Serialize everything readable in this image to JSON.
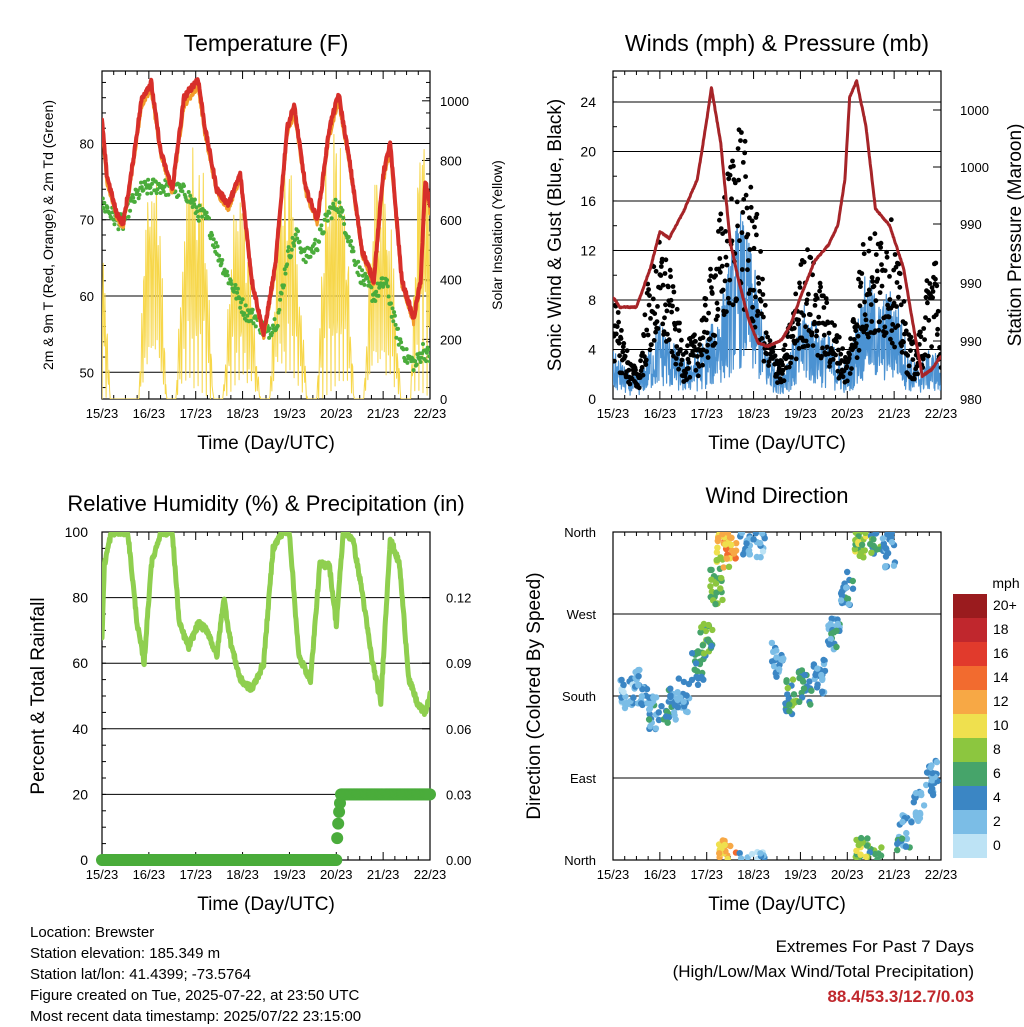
{
  "figure": {
    "x_tick_labels": [
      "15/23",
      "16/23",
      "17/23",
      "18/23",
      "19/23",
      "20/23",
      "21/23",
      "22/23"
    ],
    "x_axis_label": "Time (Day/UTC)"
  },
  "chart_data": [
    {
      "id": "temperature",
      "type": "line",
      "title": "Temperature (F)",
      "xlabel": "Time (Day/UTC)",
      "ylabel": "2m & 9m T (Red, Orange) & 2m Td (Green)",
      "ylabel_right": "Solar Insolation (Yellow)",
      "ylim": [
        46.5,
        89.5
      ],
      "yticks": [
        50,
        60,
        70,
        80
      ],
      "ylim_right": [
        0,
        1100
      ],
      "yticks_right": [
        0,
        200,
        400,
        600,
        800,
        1000
      ],
      "xlim": [
        0,
        7
      ],
      "grid": true,
      "series": [
        {
          "name": "2m T",
          "color": "#d72f2a",
          "x": [
            0,
            0.1,
            0.3,
            0.45,
            0.6,
            0.85,
            1.05,
            1.25,
            1.5,
            1.75,
            2.05,
            2.2,
            2.45,
            2.7,
            2.95,
            3.2,
            3.45,
            3.7,
            3.95,
            4.1,
            4.35,
            4.6,
            4.85,
            5.05,
            5.3,
            5.55,
            5.8,
            6.0,
            6.15,
            6.4,
            6.65,
            6.8,
            6.9,
            7.0
          ],
          "values": [
            83,
            76,
            71,
            69.5,
            75,
            86,
            88,
            79,
            74,
            86,
            88.5,
            82,
            74,
            72,
            76,
            62,
            55,
            64,
            82,
            85,
            74,
            70,
            82,
            86.5,
            77,
            66,
            62,
            76,
            80,
            62,
            57,
            62,
            75,
            72
          ]
        },
        {
          "name": "9m T",
          "color": "#f39c2a",
          "x": [
            0,
            0.1,
            0.3,
            0.45,
            0.6,
            0.85,
            1.05,
            1.25,
            1.5,
            1.75,
            2.05,
            2.2,
            2.45,
            2.7,
            2.95,
            3.2,
            3.45,
            3.7,
            3.95,
            4.1,
            4.35,
            4.6,
            4.85,
            5.05,
            5.3,
            5.55,
            5.8,
            6.0,
            6.15,
            6.4,
            6.65,
            6.8,
            6.9,
            7.0
          ],
          "values": [
            82,
            75,
            70.5,
            69,
            74.5,
            85,
            87,
            78.5,
            73.5,
            85,
            87.5,
            81,
            73.5,
            71.5,
            75.5,
            61.5,
            54.5,
            63.5,
            81,
            84,
            73.5,
            69.5,
            81,
            85.5,
            76.5,
            65.5,
            61.5,
            75,
            79,
            61.5,
            56.5,
            61.5,
            74,
            71
          ]
        },
        {
          "name": "2m Td",
          "color": "#4aac3b",
          "x": [
            0,
            0.1,
            0.3,
            0.45,
            0.6,
            0.85,
            1.2,
            1.5,
            1.8,
            2.05,
            2.25,
            2.45,
            2.65,
            2.9,
            3.05,
            3.3,
            3.5,
            3.75,
            3.95,
            4.15,
            4.35,
            4.6,
            4.85,
            5.05,
            5.3,
            5.5,
            5.8,
            6.05,
            6.3,
            6.5,
            6.7,
            6.85,
            7.0
          ],
          "values": [
            72,
            71.5,
            70,
            69.5,
            72,
            74,
            74.5,
            74,
            73.5,
            71,
            70,
            66,
            63,
            60,
            58,
            57,
            55,
            57,
            65,
            68,
            65,
            67,
            71,
            72,
            67,
            63,
            60,
            62,
            55,
            52,
            51,
            53,
            52
          ]
        },
        {
          "name": "Solar Insolation",
          "color": "#f7d74a",
          "axis": "right",
          "x": [
            0,
            0.18,
            0.38,
            0.58,
            0.78,
            0.98,
            1.18,
            1.38,
            1.58,
            1.78,
            1.98,
            2.18,
            2.38,
            2.58,
            2.78,
            2.98,
            3.18,
            3.38,
            3.58,
            3.78,
            3.98,
            4.18,
            4.38,
            4.58,
            4.78,
            4.98,
            5.18,
            5.38,
            5.58,
            5.78,
            5.98,
            6.18,
            6.38,
            6.58,
            6.78,
            6.98
          ],
          "values": [
            650,
            0,
            0,
            0,
            0,
            900,
            900,
            0,
            0,
            850,
            950,
            800,
            0,
            0,
            600,
            750,
            450,
            0,
            0,
            850,
            900,
            600,
            0,
            0,
            900,
            950,
            850,
            0,
            0,
            800,
            850,
            700,
            0,
            0,
            1100,
            900
          ]
        }
      ]
    },
    {
      "id": "winds_pressure",
      "type": "scatter",
      "title": "Winds (mph) & Pressure (mb)",
      "xlabel": "Time (Day/UTC)",
      "ylabel": "Sonic Wind & Gust (Blue, Black)",
      "ylabel_right": "Station Pressure (Maroon)",
      "ylim": [
        0,
        26.5
      ],
      "yticks": [
        0,
        4,
        8,
        12,
        16,
        20,
        24
      ],
      "yticks_right_labels": [
        "980",
        "990",
        "990",
        "990",
        "990",
        "1000",
        "1000"
      ],
      "xlim": [
        0,
        7
      ],
      "grid": true,
      "series": [
        {
          "name": "Sonic Wind",
          "color": "#4b92d2",
          "x": [
            0,
            0.15,
            0.35,
            0.55,
            0.75,
            1.0,
            1.2,
            1.5,
            1.8,
            2.0,
            2.3,
            2.5,
            2.7,
            2.9,
            3.1,
            3.3,
            3.6,
            3.9,
            4.1,
            4.3,
            4.6,
            4.8,
            5.0,
            5.2,
            5.4,
            5.7,
            5.9,
            6.1,
            6.3,
            6.5,
            6.7,
            6.9,
            7.0
          ],
          "values": [
            3,
            2.5,
            1.5,
            1.5,
            3,
            5,
            4,
            2.5,
            3,
            4,
            6,
            9,
            12,
            10,
            7,
            3,
            2,
            4,
            6,
            5,
            4,
            3,
            2,
            5,
            8,
            6,
            7,
            6,
            3,
            2,
            3,
            3,
            1.5
          ]
        },
        {
          "name": "Gust",
          "color": "#000000",
          "x": [
            0,
            0.15,
            0.35,
            0.55,
            0.75,
            1.0,
            1.2,
            1.5,
            1.8,
            2.0,
            2.3,
            2.5,
            2.7,
            2.9,
            3.1,
            3.3,
            3.6,
            3.9,
            4.1,
            4.3,
            4.6,
            4.8,
            5.0,
            5.2,
            5.4,
            5.7,
            5.9,
            6.1,
            6.3,
            6.5,
            6.7,
            6.9,
            7.0
          ],
          "values": [
            8,
            6,
            3,
            2,
            9,
            12,
            10,
            4,
            5,
            8,
            14,
            18,
            22,
            17,
            13,
            5,
            3,
            8,
            12,
            10,
            7,
            5,
            3,
            9,
            13,
            12,
            14,
            10,
            5,
            4,
            9,
            12,
            3
          ]
        },
        {
          "name": "Station Pressure",
          "color": "#a62428",
          "x": [
            0,
            0.15,
            0.5,
            0.8,
            1.0,
            1.2,
            1.5,
            1.8,
            2.0,
            2.1,
            2.3,
            2.5,
            2.7,
            2.9,
            3.1,
            3.3,
            3.6,
            3.8,
            4.0,
            4.3,
            4.6,
            4.8,
            4.95,
            5.05,
            5.2,
            5.4,
            5.6,
            5.9,
            6.2,
            6.4,
            6.6,
            6.8,
            7.0
          ],
          "y_screen_fraction": [
            0.69,
            0.72,
            0.72,
            0.6,
            0.49,
            0.51,
            0.43,
            0.33,
            0.15,
            0.05,
            0.22,
            0.52,
            0.65,
            0.76,
            0.83,
            0.84,
            0.82,
            0.77,
            0.69,
            0.58,
            0.53,
            0.47,
            0.33,
            0.08,
            0.03,
            0.17,
            0.42,
            0.47,
            0.6,
            0.77,
            0.93,
            0.91,
            0.87
          ]
        }
      ]
    },
    {
      "id": "rh_precip",
      "type": "line",
      "title": "Relative Humidity (%) & Precipitation (in)",
      "xlabel": "Time (Day/UTC)",
      "ylabel": "Percent & Total Rainfall",
      "ylim": [
        0,
        100
      ],
      "yticks": [
        0,
        20,
        40,
        60,
        80,
        100
      ],
      "ylim_right": [
        0,
        0.15
      ],
      "yticks_right": [
        "0.00",
        "0.03",
        "0.06",
        "0.09",
        "0.12"
      ],
      "xlim": [
        0,
        7
      ],
      "grid": true,
      "series": [
        {
          "name": "Relative Humidity",
          "color": "#8fcf4f",
          "x": [
            0,
            0.05,
            0.2,
            0.35,
            0.55,
            0.75,
            0.9,
            1.05,
            1.25,
            1.5,
            1.65,
            1.85,
            2.05,
            2.25,
            2.45,
            2.6,
            2.75,
            2.95,
            3.2,
            3.45,
            3.65,
            3.85,
            4.0,
            4.2,
            4.45,
            4.65,
            4.85,
            5.0,
            5.15,
            5.35,
            5.55,
            5.75,
            5.95,
            6.15,
            6.35,
            6.55,
            6.75,
            6.9,
            7.0
          ],
          "values": [
            68,
            90,
            100,
            100,
            100,
            72,
            60,
            90,
            100,
            100,
            72,
            65,
            72,
            70,
            62,
            80,
            66,
            55,
            52,
            60,
            95,
            100,
            100,
            62,
            55,
            90,
            90,
            72,
            100,
            98,
            82,
            62,
            48,
            98,
            90,
            55,
            47,
            45,
            50
          ]
        },
        {
          "name": "Total Precipitation",
          "color": "#4aac3b",
          "x": [
            0,
            1,
            2,
            3,
            4,
            5,
            5.02,
            5.05,
            5.1,
            5.2,
            6,
            7
          ],
          "values": [
            0,
            0,
            0,
            0,
            0,
            0,
            0.01,
            0.02,
            0.03,
            0.03,
            0.03,
            0.03
          ]
        }
      ]
    },
    {
      "id": "wind_direction",
      "type": "scatter",
      "title": "Wind Direction",
      "xlabel": "Time (Day/UTC)",
      "ylabel": "Direction (Colored By Speed)",
      "yticks": [
        "North",
        "East",
        "South",
        "West",
        "North"
      ],
      "xlim": [
        0,
        7
      ],
      "grid": true,
      "legend_title": "mph",
      "legend_position": "right",
      "legend": [
        {
          "label": "20+",
          "color": "#9a1b1e"
        },
        {
          "label": "18",
          "color": "#c0272d"
        },
        {
          "label": "16",
          "color": "#e13a2c"
        },
        {
          "label": "14",
          "color": "#f26b2f"
        },
        {
          "label": "12",
          "color": "#f7a845"
        },
        {
          "label": "10",
          "color": "#efe04e"
        },
        {
          "label": "8",
          "color": "#8cc63f"
        },
        {
          "label": "6",
          "color": "#46a46a"
        },
        {
          "label": "4",
          "color": "#3b86c4"
        },
        {
          "label": "2",
          "color": "#7bbde6"
        },
        {
          "label": "0",
          "color": "#bde3f5"
        }
      ],
      "clusters": [
        {
          "x": 0.3,
          "direction_deg": 180,
          "speed": 2
        },
        {
          "x": 0.6,
          "direction_deg": 190,
          "speed": 3
        },
        {
          "x": 0.9,
          "direction_deg": 160,
          "speed": 4
        },
        {
          "x": 1.2,
          "direction_deg": 170,
          "speed": 4
        },
        {
          "x": 1.5,
          "direction_deg": 180,
          "speed": 3
        },
        {
          "x": 1.8,
          "direction_deg": 210,
          "speed": 5
        },
        {
          "x": 2.0,
          "direction_deg": 240,
          "speed": 6
        },
        {
          "x": 2.2,
          "direction_deg": 300,
          "speed": 7
        },
        {
          "x": 2.35,
          "direction_deg": 340,
          "speed": 10
        },
        {
          "x": 2.5,
          "direction_deg": 350,
          "speed": 12
        },
        {
          "x": 2.8,
          "direction_deg": 355,
          "speed": 3
        },
        {
          "x": 3.1,
          "direction_deg": 350,
          "speed": 2
        },
        {
          "x": 3.5,
          "direction_deg": 220,
          "speed": 3
        },
        {
          "x": 3.8,
          "direction_deg": 180,
          "speed": 6
        },
        {
          "x": 4.1,
          "direction_deg": 190,
          "speed": 5
        },
        {
          "x": 4.4,
          "direction_deg": 200,
          "speed": 3
        },
        {
          "x": 4.7,
          "direction_deg": 250,
          "speed": 4
        },
        {
          "x": 5.0,
          "direction_deg": 300,
          "speed": 4
        },
        {
          "x": 5.3,
          "direction_deg": 350,
          "speed": 8
        },
        {
          "x": 5.6,
          "direction_deg": 355,
          "speed": 6
        },
        {
          "x": 5.9,
          "direction_deg": 340,
          "speed": 3
        },
        {
          "x": 6.2,
          "direction_deg": 30,
          "speed": 4
        },
        {
          "x": 6.5,
          "direction_deg": 60,
          "speed": 3
        },
        {
          "x": 6.8,
          "direction_deg": 90,
          "speed": 3
        },
        {
          "x": 2.4,
          "direction_deg": 5,
          "speed": 11
        },
        {
          "x": 5.3,
          "direction_deg": 5,
          "speed": 8
        }
      ]
    }
  ],
  "info": {
    "location": "Location: Brewster",
    "elevation": "Station elevation: 185.349 m",
    "latlon": "Station lat/lon: 41.4399; -73.5764",
    "created": "Figure created on Tue, 2025-07-22, at 23:50 UTC",
    "recent": "Most recent data timestamp: 2025/07/22 23:15:00"
  },
  "extremes": {
    "line1": "Extremes For Past 7 Days",
    "line2": "(High/Low/Max Wind/Total Precipitation)",
    "values": "88.4/53.3/12.7/0.03"
  }
}
